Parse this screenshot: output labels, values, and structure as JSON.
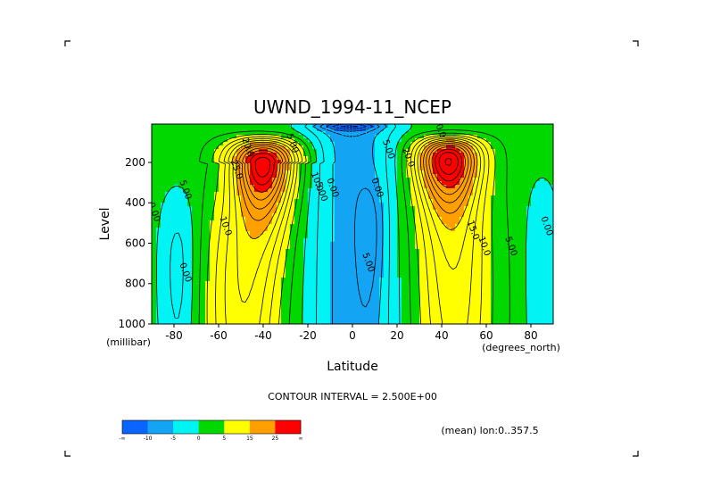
{
  "chart_data": {
    "type": "heatmap",
    "title": "UWND_1994-11_NCEP",
    "xlabel": "Latitude",
    "ylabel": "Level",
    "x_unit": "(degrees_north)",
    "y_unit": "(millibar)",
    "xlim": [
      -90,
      90
    ],
    "ylim": [
      1000,
      10
    ],
    "x_ticks": [
      -80,
      -60,
      -40,
      -20,
      0,
      20,
      40,
      60,
      80
    ],
    "y_ticks": [
      200,
      400,
      600,
      800,
      1000
    ],
    "contour_interval_text": "CONTOUR INTERVAL = 2.500E+00",
    "subtitle": "(mean) lon:0..357.5",
    "levels": [
      -20,
      -10,
      -5,
      0,
      5,
      10,
      15,
      20,
      25
    ],
    "colorbar_labels": [
      "-∞",
      "-10",
      "-5",
      "0",
      "5",
      "15",
      "25",
      "∞"
    ],
    "colors": [
      "#0a64ff",
      "#13a4f4",
      "#00f4f4",
      "#00d800",
      "#ffff00",
      "#ffa000",
      "#ff0000"
    ],
    "contour_labels": [
      {
        "text": "20.0",
        "lat": -48,
        "p": 130
      },
      {
        "text": "25.0",
        "lat": -53,
        "p": 240
      },
      {
        "text": "5.00",
        "lat": -76,
        "p": 340
      },
      {
        "text": "0.00",
        "lat": -90,
        "p": 450
      },
      {
        "text": "10.0",
        "lat": -58,
        "p": 520
      },
      {
        "text": "0.00",
        "lat": -76,
        "p": 750
      },
      {
        "text": "5.00",
        "lat": -28,
        "p": 110
      },
      {
        "text": "10.0",
        "lat": -17,
        "p": 300
      },
      {
        "text": "5.00",
        "lat": -15,
        "p": 350
      },
      {
        "text": "0.00",
        "lat": -10,
        "p": 330
      },
      {
        "text": "0.00",
        "lat": 10,
        "p": 330
      },
      {
        "text": "5.00",
        "lat": 6,
        "p": 700
      },
      {
        "text": "5.00",
        "lat": 15,
        "p": 140
      },
      {
        "text": "20.0",
        "lat": 24,
        "p": 180
      },
      {
        "text": "10.0",
        "lat": 38,
        "p": 35
      },
      {
        "text": "15.0",
        "lat": 53,
        "p": 540
      },
      {
        "text": "10.0",
        "lat": 58,
        "p": 620
      },
      {
        "text": "5.00",
        "lat": 70,
        "p": 620
      },
      {
        "text": "0.00",
        "lat": 86,
        "p": 520
      }
    ]
  }
}
